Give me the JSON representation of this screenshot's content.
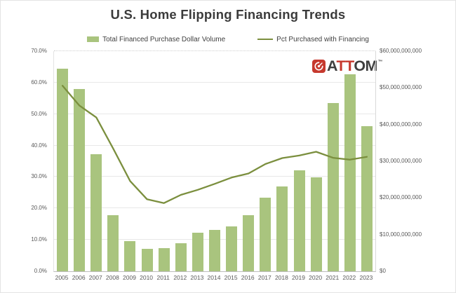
{
  "page": {
    "title": "U.S. Home Flipping Financing Trends"
  },
  "legend": {
    "bar_label": "Total Financed Purchase Dollar Volume",
    "line_label": "Pct Purchased with Financing"
  },
  "logo": {
    "prefix": "A",
    "middle": "TT",
    "suffix": "OM",
    "tm": "™"
  },
  "colors": {
    "bar_fill": "#a9c47e",
    "line_stroke": "#7b8f3e",
    "logo_red": "#c6392e",
    "text_dark": "#3b3b3b",
    "axis_text": "#595959"
  },
  "chart_data": {
    "type": "bar",
    "subtype": "bar-and-line-dual-axis",
    "title": "U.S. Home Flipping Financing Trends",
    "categories": [
      "2005",
      "2006",
      "2007",
      "2008",
      "2009",
      "2010",
      "2011",
      "2012",
      "2013",
      "2014",
      "2015",
      "2016",
      "2017",
      "2018",
      "2019",
      "2020",
      "2021",
      "2022",
      "2023"
    ],
    "series": [
      {
        "name": "Total Financed Purchase Dollar Volume",
        "type": "bar",
        "axis": "right",
        "unit": "billion USD",
        "color": "#a9c47e",
        "values": [
          55.2,
          49.7,
          32.0,
          15.2,
          8.2,
          6.2,
          6.3,
          7.6,
          10.5,
          11.2,
          12.3,
          15.3,
          20.0,
          23.1,
          27.5,
          25.6,
          45.8,
          53.7,
          39.6
        ]
      },
      {
        "name": "Pct Purchased with Financing",
        "type": "line",
        "axis": "left",
        "unit": "percent",
        "color": "#7b8f3e",
        "values": [
          59.0,
          52.7,
          48.9,
          39.0,
          28.7,
          22.9,
          21.7,
          24.3,
          25.9,
          27.8,
          29.8,
          31.1,
          34.1,
          36.0,
          36.8,
          38.0,
          36.1,
          35.5,
          36.4
        ]
      }
    ],
    "left_axis": {
      "min": 0,
      "max": 70,
      "tick_step": 10,
      "labels_bottom_to_top": [
        "0.0%",
        "10.0%",
        "20.0%",
        "30.0%",
        "40.0%",
        "50.0%",
        "60.0%",
        "70.0%"
      ]
    },
    "right_axis": {
      "min": 0,
      "max": 60000000000,
      "tick_step": 10000000000,
      "labels_bottom_to_top": [
        "$0",
        "$10,000,000,000",
        "$20,000,000,000",
        "$30,000,000,000",
        "$40,000,000,000",
        "$50,000,000,000",
        "$60,000,000,000"
      ]
    },
    "grid": {
      "horizontal": true,
      "interval_pct": 10,
      "top_line_style": "dotted"
    },
    "legend_position": "top"
  }
}
